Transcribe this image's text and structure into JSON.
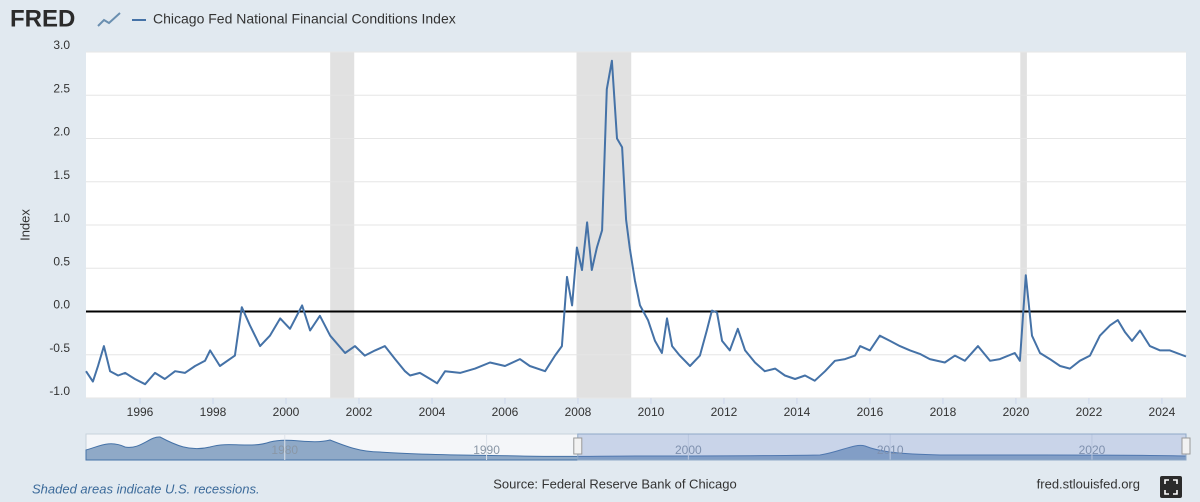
{
  "brand": "FRED",
  "chart_data": {
    "type": "line",
    "y_label": "Index",
    "series": [
      {
        "name": "Chicago Fed National Financial Conditions Index",
        "color": "#4572a7",
        "x": [
          1994.52,
          1994.71,
          1994.85,
          1995.01,
          1995.18,
          1995.4,
          1995.59,
          1995.86,
          1996.14,
          1996.41,
          1996.68,
          1996.96,
          1997.23,
          1997.51,
          1997.78,
          1997.92,
          1998.19,
          1998.6,
          1998.79,
          1999.01,
          1999.29,
          1999.56,
          1999.84,
          2000.11,
          2000.44,
          2000.66,
          2000.93,
          2001.21,
          2001.62,
          2001.89,
          2002.16,
          2002.44,
          2002.71,
          2002.99,
          2003.26,
          2003.4,
          2003.67,
          2003.95,
          2004.14,
          2004.36,
          2004.77,
          2005.18,
          2005.59,
          2006.0,
          2006.41,
          2006.68,
          2007.1,
          2007.37,
          2007.56,
          2007.7,
          2007.84,
          2007.97,
          2008.11,
          2008.25,
          2008.38,
          2008.52,
          2008.66,
          2008.79,
          2008.93,
          2009.07,
          2009.21,
          2009.32,
          2009.42,
          2009.56,
          2009.7,
          2009.92,
          2010.11,
          2010.3,
          2010.44,
          2010.58,
          2010.79,
          2011.07,
          2011.34,
          2011.53,
          2011.67,
          2011.81,
          2011.95,
          2012.16,
          2012.38,
          2012.58,
          2012.85,
          2013.12,
          2013.4,
          2013.67,
          2013.95,
          2014.22,
          2014.49,
          2014.77,
          2015.04,
          2015.32,
          2015.59,
          2015.73,
          2016.0,
          2016.27,
          2016.55,
          2016.82,
          2017.1,
          2017.37,
          2017.64,
          2018.05,
          2018.33,
          2018.6,
          2018.96,
          2019.29,
          2019.56,
          2019.97,
          2020.11,
          2020.27,
          2020.44,
          2020.66,
          2020.93,
          2021.21,
          2021.48,
          2021.75,
          2022.03,
          2022.3,
          2022.58,
          2022.79,
          2022.99,
          2023.18,
          2023.4,
          2023.67,
          2023.95,
          2024.22,
          2024.66
        ],
        "values": [
          -0.69,
          -0.81,
          -0.63,
          -0.4,
          -0.69,
          -0.74,
          -0.71,
          -0.78,
          -0.84,
          -0.71,
          -0.78,
          -0.69,
          -0.71,
          -0.63,
          -0.57,
          -0.45,
          -0.63,
          -0.51,
          0.05,
          -0.16,
          -0.4,
          -0.28,
          -0.08,
          -0.2,
          0.07,
          -0.22,
          -0.05,
          -0.28,
          -0.48,
          -0.4,
          -0.51,
          -0.45,
          -0.4,
          -0.55,
          -0.69,
          -0.74,
          -0.71,
          -0.78,
          -0.83,
          -0.69,
          -0.71,
          -0.66,
          -0.59,
          -0.63,
          -0.55,
          -0.63,
          -0.69,
          -0.51,
          -0.4,
          0.4,
          0.07,
          0.74,
          0.48,
          1.03,
          0.48,
          0.74,
          0.94,
          2.57,
          2.9,
          2.0,
          1.9,
          1.06,
          0.73,
          0.36,
          0.07,
          -0.1,
          -0.34,
          -0.48,
          -0.08,
          -0.4,
          -0.51,
          -0.63,
          -0.51,
          -0.22,
          0.01,
          -0.01,
          -0.34,
          -0.45,
          -0.2,
          -0.45,
          -0.59,
          -0.69,
          -0.66,
          -0.74,
          -0.78,
          -0.74,
          -0.8,
          -0.69,
          -0.57,
          -0.55,
          -0.51,
          -0.4,
          -0.45,
          -0.28,
          -0.34,
          -0.4,
          -0.45,
          -0.49,
          -0.55,
          -0.59,
          -0.51,
          -0.57,
          -0.4,
          -0.57,
          -0.55,
          -0.48,
          -0.57,
          0.42,
          -0.28,
          -0.48,
          -0.55,
          -0.63,
          -0.66,
          -0.57,
          -0.51,
          -0.28,
          -0.16,
          -0.1,
          -0.24,
          -0.34,
          -0.22,
          -0.4,
          -0.45,
          -0.45,
          -0.52
        ]
      }
    ],
    "xlim": [
      1994.52,
      2024.66
    ],
    "xticks": [
      1996,
      1998,
      2000,
      2002,
      2004,
      2006,
      2008,
      2010,
      2012,
      2014,
      2016,
      2018,
      2020,
      2022,
      2024
    ],
    "ylim": [
      -1.0,
      3.0
    ],
    "yticks": [
      {
        "value": -1.0,
        "label": "-1.0"
      },
      {
        "value": -0.5,
        "label": "-0.5"
      },
      {
        "value": 0,
        "label": "0.0"
      },
      {
        "value": 0.5,
        "label": "0.5"
      },
      {
        "value": 1.0,
        "label": "1.0"
      },
      {
        "value": 1.5,
        "label": "1.5"
      },
      {
        "value": 2.0,
        "label": "2.0"
      },
      {
        "value": 2.5,
        "label": "2.5"
      },
      {
        "value": 3.0,
        "label": "3.0"
      }
    ],
    "grid": true,
    "reference_line": 0,
    "recessions": [
      [
        2001.21,
        2001.87
      ],
      [
        2007.96,
        2009.46
      ],
      [
        2020.12,
        2020.3
      ]
    ],
    "navigator": {
      "xlim": [
        1970.15,
        2024.66
      ],
      "xticks": [
        1980,
        1990,
        2000,
        2010,
        2020
      ]
    }
  },
  "footer": {
    "note": "Shaded areas indicate U.S. recessions.",
    "source": "Source: Federal Reserve Bank of Chicago",
    "site": "fred.stlouisfed.org"
  }
}
